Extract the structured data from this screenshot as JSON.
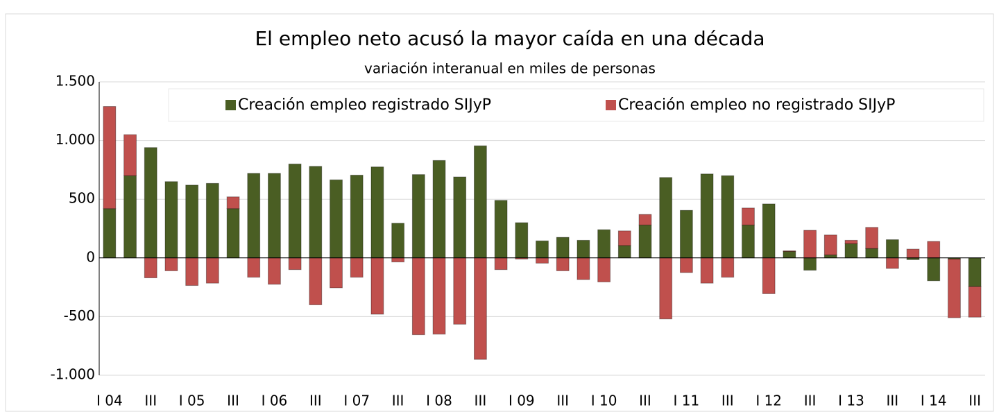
{
  "chart_data": {
    "type": "bar",
    "stacked": true,
    "title": "El empleo neto acusó la mayor caída en una década",
    "subtitle": "variación interanual en miles de personas",
    "categories": [
      "I 04",
      null,
      "III",
      null,
      "I 05",
      null,
      "III",
      null,
      "I 06",
      null,
      "III",
      null,
      "I 07",
      null,
      "III",
      null,
      "I 08",
      null,
      "III",
      null,
      "I 09",
      null,
      "III",
      null,
      "I 10",
      null,
      "III",
      null,
      "I 11",
      null,
      "III",
      null,
      "I 12",
      null,
      "III",
      null,
      "I 13",
      null,
      "III",
      null,
      "I 14",
      null,
      "III"
    ],
    "series": [
      {
        "name": "Creación empleo registrado SIJyP",
        "color": "#4a5e23",
        "values": [
          420,
          700,
          940,
          650,
          620,
          635,
          420,
          720,
          720,
          800,
          780,
          665,
          705,
          775,
          295,
          710,
          830,
          690,
          955,
          490,
          300,
          145,
          175,
          150,
          240,
          105,
          280,
          685,
          405,
          715,
          700,
          280,
          460,
          55,
          -105,
          25,
          120,
          80,
          155,
          -15,
          -195,
          -10,
          -245
        ]
      },
      {
        "name": "Creación empleo no registrado SIJyP",
        "color": "#c0504d",
        "values": [
          870,
          350,
          -170,
          -110,
          -235,
          -215,
          100,
          -165,
          -225,
          -100,
          -400,
          -255,
          -165,
          -480,
          -35,
          -655,
          -650,
          -565,
          -865,
          -100,
          -10,
          -45,
          -110,
          -185,
          -205,
          125,
          90,
          -520,
          -125,
          -215,
          -165,
          145,
          -305,
          5,
          235,
          170,
          30,
          180,
          -90,
          75,
          140,
          -500,
          -260
        ]
      }
    ],
    "ylim": [
      -1000,
      1500
    ],
    "yticks": [
      {
        "value": -1000,
        "label": "-1.000"
      },
      {
        "value": -500,
        "label": "-500"
      },
      0,
      500,
      {
        "value": 1000,
        "label": "1.000"
      },
      {
        "value": 1500,
        "label": "1.500"
      }
    ],
    "grid": true,
    "legend": "top"
  }
}
